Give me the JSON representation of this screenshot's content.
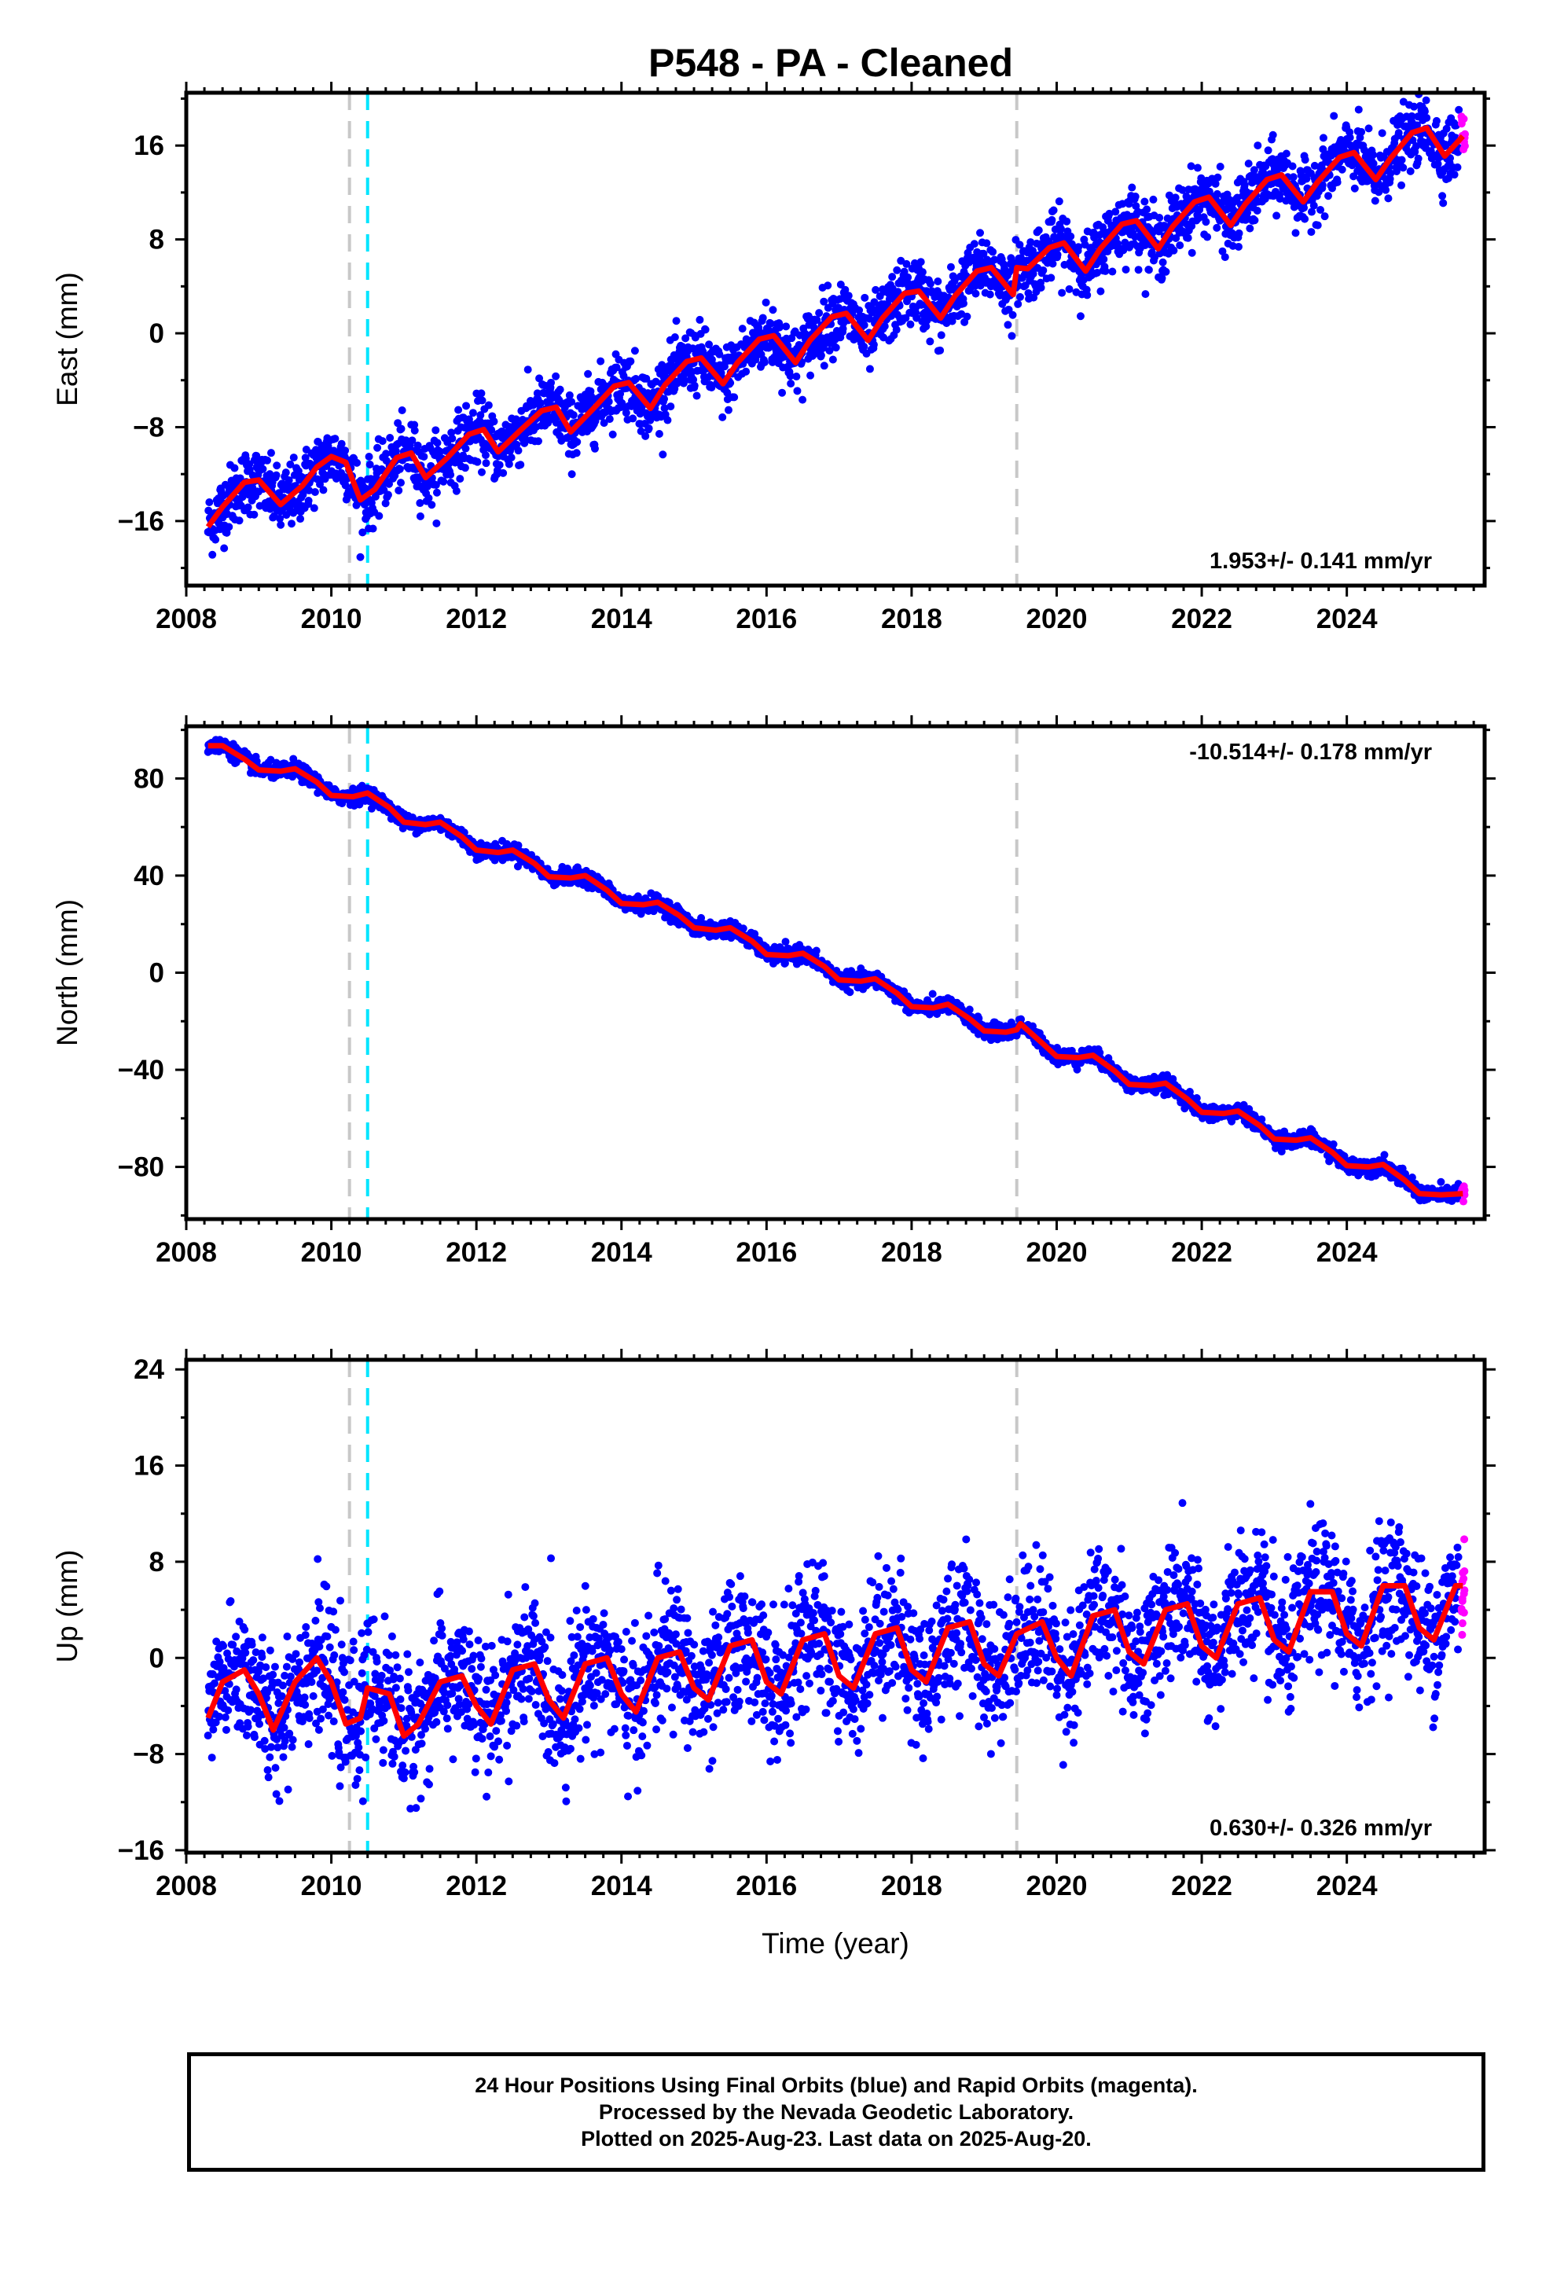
{
  "title": "P548  - PA - Cleaned",
  "footer": {
    "line1": "24 Hour Positions Using Final Orbits (blue) and Rapid Orbits (magenta).",
    "line2": "Processed by the Nevada Geodetic Laboratory.",
    "line3": "Plotted on 2025-Aug-23. Last data on 2025-Aug-20."
  },
  "colors": {
    "final_orbits": "#0000ff",
    "rapid_orbits": "#ff00ff",
    "model": "#ff0000",
    "event_gray": "#c8c8c8",
    "event_cyan": "#00e5ff"
  },
  "chart_data": [
    {
      "type": "scatter",
      "ylabel": "East (mm)",
      "xlabel": "",
      "xlim": [
        2008.0,
        2025.9
      ],
      "ylim": [
        -21.5,
        20.5
      ],
      "xticks": [
        "2008",
        "2010",
        "2012",
        "2014",
        "2016",
        "2018",
        "2020",
        "2022",
        "2024"
      ],
      "yticks": [
        "16",
        "8",
        "0",
        "−8",
        "−16"
      ],
      "rate_label": "1.953+/- 0.141 mm/yr",
      "rate_position": "bottom-right",
      "event_lines": [
        {
          "x": 2010.25,
          "color": "gray"
        },
        {
          "x": 2010.5,
          "color": "cyan"
        },
        {
          "x": 2019.45,
          "color": "gray"
        }
      ],
      "model_fit": {
        "x": [
          2008.3,
          2008.5,
          2008.8,
          2009.0,
          2009.3,
          2009.6,
          2009.8,
          2010.0,
          2010.2,
          2010.4,
          2010.6,
          2010.9,
          2011.1,
          2011.3,
          2011.6,
          2011.9,
          2012.1,
          2012.3,
          2012.6,
          2012.9,
          2013.1,
          2013.3,
          2013.6,
          2013.9,
          2014.1,
          2014.4,
          2014.6,
          2014.9,
          2015.1,
          2015.4,
          2015.6,
          2015.9,
          2016.1,
          2016.4,
          2016.6,
          2016.9,
          2017.1,
          2017.4,
          2017.6,
          2017.9,
          2018.1,
          2018.4,
          2018.6,
          2018.9,
          2019.1,
          2019.4,
          2019.45,
          2019.6,
          2019.9,
          2020.1,
          2020.4,
          2020.6,
          2020.9,
          2021.1,
          2021.4,
          2021.6,
          2021.9,
          2022.1,
          2022.4,
          2022.6,
          2022.9,
          2023.1,
          2023.4,
          2023.6,
          2023.9,
          2024.1,
          2024.4,
          2024.6,
          2024.9,
          2025.1,
          2025.35,
          2025.6
        ],
        "y": [
          -16.5,
          -14.8,
          -12.7,
          -12.5,
          -14.6,
          -13.0,
          -11.4,
          -10.5,
          -11.0,
          -14.2,
          -13.3,
          -10.6,
          -10.2,
          -12.3,
          -10.6,
          -8.6,
          -8.2,
          -10.1,
          -8.3,
          -6.6,
          -6.3,
          -8.4,
          -6.5,
          -4.5,
          -4.2,
          -6.4,
          -4.4,
          -2.4,
          -2.1,
          -4.3,
          -2.5,
          -0.5,
          -0.2,
          -2.5,
          -0.6,
          1.4,
          1.7,
          -0.6,
          1.3,
          3.4,
          3.6,
          1.3,
          3.2,
          5.3,
          5.6,
          3.3,
          5.6,
          5.5,
          7.3,
          7.7,
          5.3,
          7.2,
          9.3,
          9.6,
          7.2,
          9.1,
          11.2,
          11.6,
          9.2,
          11.0,
          13.1,
          13.5,
          11.2,
          12.9,
          15.0,
          15.4,
          13.1,
          14.9,
          17.1,
          17.5,
          15.1,
          16.8
        ]
      }
    },
    {
      "type": "scatter",
      "ylabel": "North (mm)",
      "xlabel": "",
      "xlim": [
        2008.0,
        2025.9
      ],
      "ylim": [
        -101.5,
        101.5
      ],
      "xticks": [
        "2008",
        "2010",
        "2012",
        "2014",
        "2016",
        "2018",
        "2020",
        "2022",
        "2024"
      ],
      "yticks": [
        "80",
        "40",
        "0",
        "−40",
        "−80"
      ],
      "rate_label": "-10.514+/- 0.178 mm/yr",
      "rate_position": "top-right",
      "event_lines": [
        {
          "x": 2010.25,
          "color": "gray"
        },
        {
          "x": 2010.5,
          "color": "cyan"
        },
        {
          "x": 2019.45,
          "color": "gray"
        }
      ],
      "model_fit": {
        "x": [
          2008.3,
          2008.5,
          2008.8,
          2009.0,
          2009.3,
          2009.5,
          2009.8,
          2010.0,
          2010.3,
          2010.5,
          2010.8,
          2011.0,
          2011.3,
          2011.5,
          2011.8,
          2012.0,
          2012.3,
          2012.5,
          2012.8,
          2013.0,
          2013.3,
          2013.5,
          2013.8,
          2014.0,
          2014.3,
          2014.5,
          2014.8,
          2015.0,
          2015.3,
          2015.5,
          2015.8,
          2016.0,
          2016.3,
          2016.5,
          2016.8,
          2017.0,
          2017.3,
          2017.5,
          2017.8,
          2018.0,
          2018.3,
          2018.5,
          2018.8,
          2019.0,
          2019.3,
          2019.45,
          2019.5,
          2019.8,
          2020.0,
          2020.3,
          2020.5,
          2020.8,
          2021.0,
          2021.3,
          2021.5,
          2021.8,
          2022.0,
          2022.3,
          2022.5,
          2022.8,
          2023.0,
          2023.3,
          2023.5,
          2023.8,
          2024.0,
          2024.3,
          2024.5,
          2024.8,
          2025.0,
          2025.3,
          2025.6
        ],
        "y": [
          93.5,
          93.5,
          88.0,
          83.5,
          83.0,
          84.0,
          78.5,
          73.0,
          72.5,
          74.0,
          68.0,
          62.0,
          61.0,
          62.0,
          56.0,
          50.5,
          49.5,
          50.5,
          45.0,
          39.5,
          39.0,
          40.0,
          34.0,
          28.5,
          28.0,
          29.0,
          23.5,
          18.5,
          17.5,
          18.5,
          13.0,
          7.5,
          7.0,
          8.0,
          2.5,
          -3.0,
          -3.5,
          -2.5,
          -8.5,
          -14.0,
          -14.5,
          -13.0,
          -19.0,
          -24.0,
          -24.5,
          -23.5,
          -21.0,
          -29.0,
          -34.5,
          -35.0,
          -34.0,
          -40.5,
          -46.0,
          -46.5,
          -45.5,
          -52.0,
          -57.5,
          -58.0,
          -57.0,
          -63.0,
          -68.5,
          -69.0,
          -68.0,
          -74.0,
          -79.5,
          -80.0,
          -79.0,
          -85.5,
          -91.0,
          -91.5,
          -91.0
        ]
      }
    },
    {
      "type": "scatter",
      "ylabel": "Up (mm)",
      "xlabel": "Time (year)",
      "xlim": [
        2008.0,
        2025.9
      ],
      "ylim": [
        -16.2,
        24.8
      ],
      "xticks": [
        "2008",
        "2010",
        "2012",
        "2014",
        "2016",
        "2018",
        "2020",
        "2022",
        "2024"
      ],
      "yticks": [
        "24",
        "16",
        "8",
        "0",
        "−8",
        "−16"
      ],
      "rate_label": "0.630+/- 0.326 mm/yr",
      "rate_position": "bottom-right",
      "event_lines": [
        {
          "x": 2010.25,
          "color": "gray"
        },
        {
          "x": 2010.5,
          "color": "cyan"
        },
        {
          "x": 2019.45,
          "color": "gray"
        }
      ],
      "model_fit": {
        "x": [
          2008.3,
          2008.5,
          2008.8,
          2009.0,
          2009.2,
          2009.5,
          2009.8,
          2010.0,
          2010.2,
          2010.4,
          2010.5,
          2010.8,
          2011.0,
          2011.2,
          2011.5,
          2011.8,
          2012.0,
          2012.2,
          2012.5,
          2012.8,
          2013.0,
          2013.2,
          2013.5,
          2013.8,
          2014.0,
          2014.2,
          2014.5,
          2014.8,
          2015.0,
          2015.2,
          2015.5,
          2015.8,
          2016.0,
          2016.2,
          2016.5,
          2016.8,
          2017.0,
          2017.2,
          2017.5,
          2017.8,
          2018.0,
          2018.2,
          2018.5,
          2018.8,
          2019.0,
          2019.2,
          2019.45,
          2019.8,
          2020.0,
          2020.2,
          2020.5,
          2020.8,
          2021.0,
          2021.2,
          2021.5,
          2021.8,
          2022.0,
          2022.2,
          2022.5,
          2022.8,
          2023.0,
          2023.2,
          2023.5,
          2023.8,
          2024.0,
          2024.2,
          2024.5,
          2024.8,
          2025.0,
          2025.2,
          2025.5,
          2025.6
        ],
        "y": [
          -5.0,
          -2.0,
          -1.0,
          -3.0,
          -6.0,
          -2.0,
          0.0,
          -2.0,
          -5.5,
          -5.0,
          -2.5,
          -3.0,
          -6.5,
          -5.5,
          -2.0,
          -1.5,
          -4.0,
          -5.5,
          -1.0,
          -0.5,
          -3.5,
          -5.0,
          -0.5,
          0.0,
          -3.0,
          -4.5,
          0.0,
          0.5,
          -2.5,
          -3.5,
          1.0,
          1.5,
          -2.0,
          -3.0,
          1.5,
          2.0,
          -1.5,
          -2.5,
          2.0,
          2.5,
          -1.0,
          -2.0,
          2.5,
          3.0,
          -0.5,
          -1.5,
          2.0,
          3.0,
          0.0,
          -1.5,
          3.5,
          4.0,
          0.5,
          -0.5,
          4.0,
          4.5,
          1.0,
          0.0,
          4.5,
          5.0,
          1.5,
          0.5,
          5.5,
          5.5,
          2.0,
          1.0,
          6.0,
          6.0,
          2.5,
          1.5,
          6.0,
          6.0
        ]
      }
    }
  ]
}
